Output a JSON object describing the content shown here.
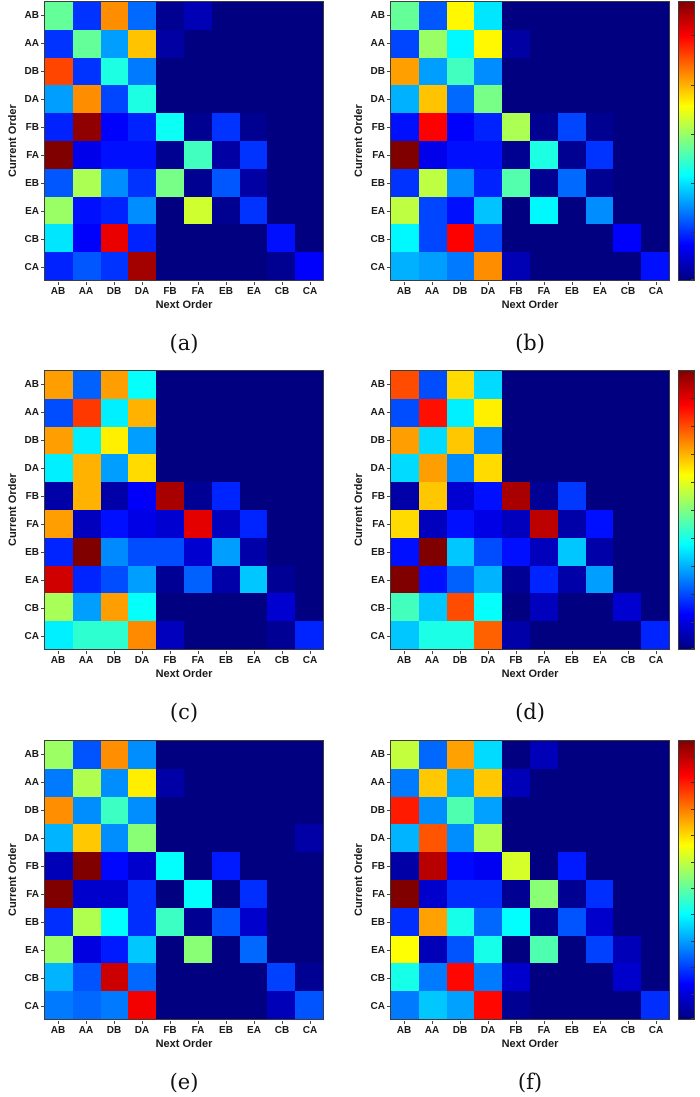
{
  "figure": {
    "background": "#ffffff",
    "xlabel": "Next Order",
    "ylabel": "Current Order",
    "categories": [
      "AB",
      "AA",
      "DB",
      "DA",
      "FB",
      "FA",
      "EB",
      "EA",
      "CB",
      "CA"
    ],
    "colors": {
      "colormap_low": "#00008b",
      "colormap_high": "#800000",
      "axis": "#3c3c3c"
    }
  },
  "chart_data": [
    {
      "id": "a",
      "type": "heatmap",
      "caption": "(a)",
      "xlabel": "Next Order",
      "ylabel": "Current Order",
      "x_categories": [
        "AB",
        "AA",
        "DB",
        "DA",
        "FB",
        "FA",
        "EB",
        "EA",
        "CB",
        "CA"
      ],
      "y_categories": [
        "AB",
        "AA",
        "DB",
        "DA",
        "FB",
        "FA",
        "EB",
        "EA",
        "CB",
        "CA"
      ],
      "vmin": 0,
      "vmax": 0.57,
      "colormap": "jet",
      "colorbar_ticks": null,
      "values": [
        [
          0.27,
          0.1,
          0.42,
          0.13,
          0.01,
          0.03,
          0.0,
          0.0,
          0.0,
          0.0
        ],
        [
          0.1,
          0.27,
          0.16,
          0.39,
          0.02,
          0.0,
          0.0,
          0.0,
          0.0,
          0.0
        ],
        [
          0.46,
          0.1,
          0.23,
          0.14,
          0.0,
          0.0,
          0.0,
          0.0,
          0.0,
          0.0
        ],
        [
          0.16,
          0.42,
          0.11,
          0.23,
          0.0,
          0.0,
          0.0,
          0.0,
          0.0,
          0.0
        ],
        [
          0.09,
          0.56,
          0.07,
          0.09,
          0.22,
          0.01,
          0.1,
          0.01,
          0.0,
          0.0
        ],
        [
          0.57,
          0.06,
          0.08,
          0.08,
          0.01,
          0.25,
          0.02,
          0.1,
          0.0,
          0.0
        ],
        [
          0.12,
          0.31,
          0.15,
          0.1,
          0.28,
          0.01,
          0.12,
          0.02,
          0.0,
          0.0
        ],
        [
          0.3,
          0.08,
          0.09,
          0.15,
          0.0,
          0.33,
          0.01,
          0.1,
          0.0,
          0.0
        ],
        [
          0.2,
          0.07,
          0.51,
          0.09,
          0.0,
          0.0,
          0.0,
          0.0,
          0.08,
          0.0
        ],
        [
          0.09,
          0.12,
          0.1,
          0.55,
          0.0,
          0.0,
          0.0,
          0.0,
          0.01,
          0.07
        ]
      ]
    },
    {
      "id": "b",
      "type": "heatmap",
      "caption": "(b)",
      "xlabel": "Next Order",
      "ylabel": "Current Order",
      "x_categories": [
        "AB",
        "AA",
        "DB",
        "DA",
        "FB",
        "FA",
        "EB",
        "EA",
        "CB",
        "CA"
      ],
      "y_categories": [
        "AB",
        "AA",
        "DB",
        "DA",
        "FB",
        "FA",
        "EB",
        "EA",
        "CB",
        "CA"
      ],
      "vmin": 0,
      "vmax": 0.57,
      "colormap": "jet",
      "colorbar_ticks": [
        0,
        0.1,
        0.2,
        0.3,
        0.4,
        0.5
      ],
      "values": [
        [
          0.27,
          0.12,
          0.36,
          0.2,
          0.0,
          0.0,
          0.0,
          0.0,
          0.0,
          0.0
        ],
        [
          0.11,
          0.3,
          0.21,
          0.36,
          0.02,
          0.0,
          0.0,
          0.0,
          0.0,
          0.0
        ],
        [
          0.41,
          0.16,
          0.25,
          0.15,
          0.0,
          0.0,
          0.0,
          0.0,
          0.0,
          0.0
        ],
        [
          0.17,
          0.39,
          0.13,
          0.28,
          0.0,
          0.0,
          0.0,
          0.0,
          0.0,
          0.0
        ],
        [
          0.08,
          0.5,
          0.07,
          0.09,
          0.31,
          0.01,
          0.11,
          0.01,
          0.0,
          0.0
        ],
        [
          0.57,
          0.06,
          0.08,
          0.08,
          0.01,
          0.23,
          0.01,
          0.1,
          0.0,
          0.0
        ],
        [
          0.1,
          0.32,
          0.15,
          0.09,
          0.26,
          0.01,
          0.13,
          0.01,
          0.0,
          0.0
        ],
        [
          0.32,
          0.11,
          0.08,
          0.18,
          0.0,
          0.21,
          0.0,
          0.15,
          0.0,
          0.0
        ],
        [
          0.21,
          0.11,
          0.5,
          0.11,
          0.0,
          0.0,
          0.0,
          0.0,
          0.07,
          0.0
        ],
        [
          0.17,
          0.16,
          0.14,
          0.42,
          0.03,
          0.0,
          0.0,
          0.0,
          0.0,
          0.08
        ]
      ]
    },
    {
      "id": "c",
      "type": "heatmap",
      "caption": "(c)",
      "xlabel": "Next Order",
      "ylabel": "Current Order",
      "x_categories": [
        "AB",
        "AA",
        "DB",
        "DA",
        "FB",
        "FA",
        "EB",
        "EA",
        "CB",
        "CA"
      ],
      "y_categories": [
        "AB",
        "AA",
        "DB",
        "DA",
        "FB",
        "FA",
        "EB",
        "EA",
        "CB",
        "CA"
      ],
      "vmin": 0,
      "vmax": 0.5,
      "colormap": "jet",
      "colorbar_ticks": null,
      "values": [
        [
          0.36,
          0.11,
          0.36,
          0.19,
          0.0,
          0.0,
          0.0,
          0.0,
          0.0,
          0.0
        ],
        [
          0.1,
          0.41,
          0.18,
          0.35,
          0.0,
          0.0,
          0.0,
          0.0,
          0.0,
          0.0
        ],
        [
          0.36,
          0.18,
          0.32,
          0.14,
          0.0,
          0.0,
          0.0,
          0.0,
          0.0,
          0.0
        ],
        [
          0.18,
          0.35,
          0.14,
          0.33,
          0.0,
          0.0,
          0.0,
          0.0,
          0.0,
          0.0
        ],
        [
          0.02,
          0.35,
          0.02,
          0.06,
          0.48,
          0.01,
          0.08,
          0.0,
          0.0,
          0.0
        ],
        [
          0.36,
          0.03,
          0.07,
          0.05,
          0.04,
          0.45,
          0.03,
          0.08,
          0.0,
          0.0
        ],
        [
          0.08,
          0.5,
          0.13,
          0.1,
          0.1,
          0.04,
          0.14,
          0.02,
          0.0,
          0.0
        ],
        [
          0.46,
          0.08,
          0.1,
          0.14,
          0.01,
          0.11,
          0.02,
          0.16,
          0.01,
          0.0
        ],
        [
          0.27,
          0.14,
          0.36,
          0.19,
          0.0,
          0.0,
          0.0,
          0.0,
          0.04,
          0.0
        ],
        [
          0.18,
          0.21,
          0.21,
          0.37,
          0.03,
          0.0,
          0.0,
          0.0,
          0.01,
          0.08
        ]
      ]
    },
    {
      "id": "d",
      "type": "heatmap",
      "caption": "(d)",
      "xlabel": "Next Order",
      "ylabel": "Current Order",
      "x_categories": [
        "AB",
        "AA",
        "DB",
        "DA",
        "FB",
        "FA",
        "EB",
        "EA",
        "CB",
        "CA"
      ],
      "y_categories": [
        "AB",
        "AA",
        "DB",
        "DA",
        "FB",
        "FA",
        "EB",
        "EA",
        "CB",
        "CA"
      ],
      "vmin": 0,
      "vmax": 0.5,
      "colormap": "jet",
      "colorbar_ticks": [
        0,
        0.05,
        0.1,
        0.15,
        0.2,
        0.25,
        0.3,
        0.35,
        0.4,
        0.45,
        0.5
      ],
      "values": [
        [
          0.4,
          0.1,
          0.33,
          0.17,
          0.0,
          0.0,
          0.0,
          0.0,
          0.0,
          0.0
        ],
        [
          0.1,
          0.43,
          0.18,
          0.32,
          0.0,
          0.0,
          0.0,
          0.0,
          0.0,
          0.0
        ],
        [
          0.36,
          0.17,
          0.34,
          0.13,
          0.0,
          0.0,
          0.0,
          0.0,
          0.0,
          0.0
        ],
        [
          0.17,
          0.36,
          0.13,
          0.33,
          0.0,
          0.0,
          0.0,
          0.0,
          0.0,
          0.0
        ],
        [
          0.02,
          0.34,
          0.04,
          0.07,
          0.48,
          0.01,
          0.09,
          0.0,
          0.0,
          0.0
        ],
        [
          0.33,
          0.03,
          0.07,
          0.05,
          0.03,
          0.47,
          0.02,
          0.07,
          0.0,
          0.0
        ],
        [
          0.07,
          0.5,
          0.16,
          0.1,
          0.07,
          0.03,
          0.16,
          0.02,
          0.0,
          0.0
        ],
        [
          0.5,
          0.07,
          0.11,
          0.15,
          0.01,
          0.08,
          0.02,
          0.14,
          0.0,
          0.0
        ],
        [
          0.22,
          0.16,
          0.4,
          0.19,
          0.0,
          0.03,
          0.0,
          0.0,
          0.04,
          0.0
        ],
        [
          0.16,
          0.2,
          0.2,
          0.39,
          0.02,
          0.0,
          0.0,
          0.0,
          0.0,
          0.08
        ]
      ]
    },
    {
      "id": "e",
      "type": "heatmap",
      "caption": "(e)",
      "xlabel": "Next Order",
      "ylabel": "Current Order",
      "x_categories": [
        "AB",
        "AA",
        "DB",
        "DA",
        "FB",
        "FA",
        "EB",
        "EA",
        "CB",
        "CA"
      ],
      "y_categories": [
        "AB",
        "AA",
        "DB",
        "DA",
        "FB",
        "FA",
        "EB",
        "EA",
        "CB",
        "CA"
      ],
      "vmin": 0,
      "vmax": 0.53,
      "colormap": "jet",
      "colorbar_ticks": null,
      "values": [
        [
          0.28,
          0.11,
          0.39,
          0.14,
          0.0,
          0.0,
          0.0,
          0.0,
          0.0,
          0.0
        ],
        [
          0.13,
          0.29,
          0.14,
          0.34,
          0.02,
          0.0,
          0.0,
          0.0,
          0.0,
          0.0
        ],
        [
          0.39,
          0.14,
          0.23,
          0.14,
          0.0,
          0.0,
          0.0,
          0.0,
          0.0,
          0.0
        ],
        [
          0.16,
          0.36,
          0.14,
          0.27,
          0.0,
          0.0,
          0.0,
          0.0,
          0.0,
          0.02
        ],
        [
          0.03,
          0.53,
          0.07,
          0.04,
          0.2,
          0.0,
          0.08,
          0.0,
          0.0,
          0.0
        ],
        [
          0.53,
          0.04,
          0.04,
          0.09,
          0.0,
          0.2,
          0.0,
          0.09,
          0.0,
          0.0
        ],
        [
          0.09,
          0.29,
          0.2,
          0.09,
          0.23,
          0.01,
          0.11,
          0.04,
          0.0,
          0.0
        ],
        [
          0.28,
          0.05,
          0.08,
          0.17,
          0.0,
          0.27,
          0.0,
          0.12,
          0.0,
          0.0
        ],
        [
          0.16,
          0.11,
          0.49,
          0.12,
          0.0,
          0.0,
          0.0,
          0.0,
          0.1,
          0.01
        ],
        [
          0.13,
          0.12,
          0.13,
          0.47,
          0.0,
          0.0,
          0.0,
          0.0,
          0.03,
          0.11
        ]
      ]
    },
    {
      "id": "f",
      "type": "heatmap",
      "caption": "(f)",
      "xlabel": "Next Order",
      "ylabel": "Current Order",
      "x_categories": [
        "AB",
        "AA",
        "DB",
        "DA",
        "FB",
        "FA",
        "EB",
        "EA",
        "CB",
        "CA"
      ],
      "y_categories": [
        "AB",
        "AA",
        "DB",
        "DA",
        "FB",
        "FA",
        "EB",
        "EA",
        "CB",
        "CA"
      ],
      "vmin": 0,
      "vmax": 0.53,
      "colormap": "jet",
      "colorbar_ticks": [
        0,
        0.05,
        0.1,
        0.15,
        0.2,
        0.25,
        0.3,
        0.35,
        0.4,
        0.45,
        0.5
      ],
      "values": [
        [
          0.3,
          0.12,
          0.38,
          0.18,
          0.0,
          0.03,
          0.0,
          0.0,
          0.0,
          0.0
        ],
        [
          0.13,
          0.36,
          0.15,
          0.36,
          0.03,
          0.0,
          0.0,
          0.0,
          0.0,
          0.0
        ],
        [
          0.45,
          0.14,
          0.24,
          0.15,
          0.0,
          0.0,
          0.0,
          0.0,
          0.0,
          0.0
        ],
        [
          0.16,
          0.42,
          0.14,
          0.29,
          0.0,
          0.0,
          0.0,
          0.0,
          0.0,
          0.0
        ],
        [
          0.02,
          0.5,
          0.07,
          0.06,
          0.31,
          0.0,
          0.08,
          0.0,
          0.0,
          0.0
        ],
        [
          0.53,
          0.04,
          0.09,
          0.09,
          0.01,
          0.27,
          0.01,
          0.09,
          0.0,
          0.0
        ],
        [
          0.09,
          0.38,
          0.21,
          0.12,
          0.2,
          0.01,
          0.11,
          0.04,
          0.0,
          0.0
        ],
        [
          0.33,
          0.03,
          0.11,
          0.21,
          0.0,
          0.24,
          0.0,
          0.1,
          0.03,
          0.0
        ],
        [
          0.21,
          0.13,
          0.46,
          0.13,
          0.04,
          0.0,
          0.0,
          0.0,
          0.04,
          0.0
        ],
        [
          0.13,
          0.17,
          0.15,
          0.46,
          0.01,
          0.0,
          0.0,
          0.0,
          0.0,
          0.09
        ]
      ]
    }
  ]
}
